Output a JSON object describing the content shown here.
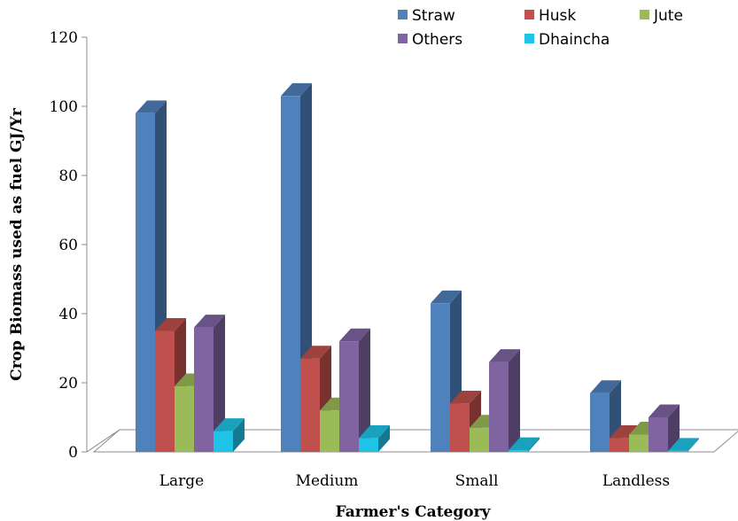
{
  "chart_data": {
    "type": "bar",
    "subtype": "3d-clustered-column",
    "title": "",
    "xlabel": "Farmer's Category",
    "ylabel": "Crop Biomass used as fuel GJ/Yr",
    "ylim": [
      0,
      120
    ],
    "yticks": [
      "0",
      "20",
      "40",
      "60",
      "80",
      "100",
      "120"
    ],
    "categories": [
      "Large",
      "Medium",
      "Small",
      "Landless"
    ],
    "series": [
      {
        "name": "Straw",
        "color": "#4f81bd",
        "values": [
          98,
          103,
          43,
          17
        ]
      },
      {
        "name": "Husk",
        "color": "#c0504d",
        "values": [
          35,
          27,
          14,
          4
        ]
      },
      {
        "name": "Jute",
        "color": "#9bbb59",
        "values": [
          19,
          12,
          7,
          5
        ]
      },
      {
        "name": "Others",
        "color": "#8064a2",
        "values": [
          36,
          32,
          26,
          10
        ]
      },
      {
        "name": "Dhaincha",
        "color": "#1ec4e8",
        "values": [
          6,
          4,
          0.5,
          0.3
        ]
      }
    ],
    "grid": false,
    "legend": "top-right"
  }
}
